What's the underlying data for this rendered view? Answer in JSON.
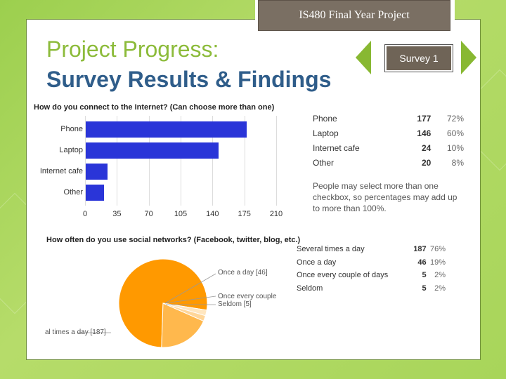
{
  "header": {
    "title": "IS480 Final Year Project"
  },
  "title": {
    "line1": "Project Progress:",
    "line2": "Survey Results & Findings"
  },
  "badge": {
    "label": "Survey 1"
  },
  "q1": {
    "question": "How do you connect to the Internet? (Can choose more than one)",
    "ticks": [
      "0",
      "35",
      "70",
      "105",
      "140",
      "175",
      "210"
    ],
    "rows": [
      {
        "label": "Phone",
        "count": "177",
        "percent": "72%"
      },
      {
        "label": "Laptop",
        "count": "146",
        "percent": "60%"
      },
      {
        "label": "Internet cafe",
        "count": "24",
        "percent": "10%"
      },
      {
        "label": "Other",
        "count": "20",
        "percent": "8%"
      }
    ],
    "note": "People may select more than one checkbox, so percentages may add up to more than 100%."
  },
  "q2": {
    "question": "How often do you use social networks? (Facebook, twitter, blog, etc.)",
    "rows": [
      {
        "label": "Several times a day",
        "count": "187",
        "percent": "76%"
      },
      {
        "label": "Once a day",
        "count": "46",
        "percent": "19%"
      },
      {
        "label": "Once every couple of days",
        "count": "5",
        "percent": "2%"
      },
      {
        "label": "Seldom",
        "count": "5",
        "percent": "2%"
      }
    ],
    "pie_labels": {
      "once_a_day": "Once a day [46]",
      "once_every": "Once every couple",
      "seldom": "Seldom [5]",
      "several": "al times a day [187]"
    }
  },
  "chart_data": [
    {
      "type": "bar",
      "categories": [
        "Phone",
        "Laptop",
        "Internet cafe",
        "Other"
      ],
      "values": [
        177,
        146,
        24,
        20
      ],
      "title": "How do you connect to the Internet? (Can choose more than one)",
      "xlim": [
        0,
        210
      ],
      "orientation": "horizontal",
      "color": "#2a35d8"
    },
    {
      "type": "pie",
      "categories": [
        "Several times a day",
        "Once a day",
        "Once every couple of days",
        "Seldom"
      ],
      "values": [
        187,
        46,
        5,
        5
      ],
      "title": "How often do you use social networks? (Facebook, twitter, blog, etc.)",
      "colors": [
        "#ff9900",
        "#ffb84d",
        "#ffd699",
        "#ffe6bf"
      ]
    }
  ],
  "colors": {
    "background": "#a8d55a",
    "accent_green": "#88b832",
    "title_blue": "#2f5d8a",
    "header_brown": "#7a6f63"
  }
}
